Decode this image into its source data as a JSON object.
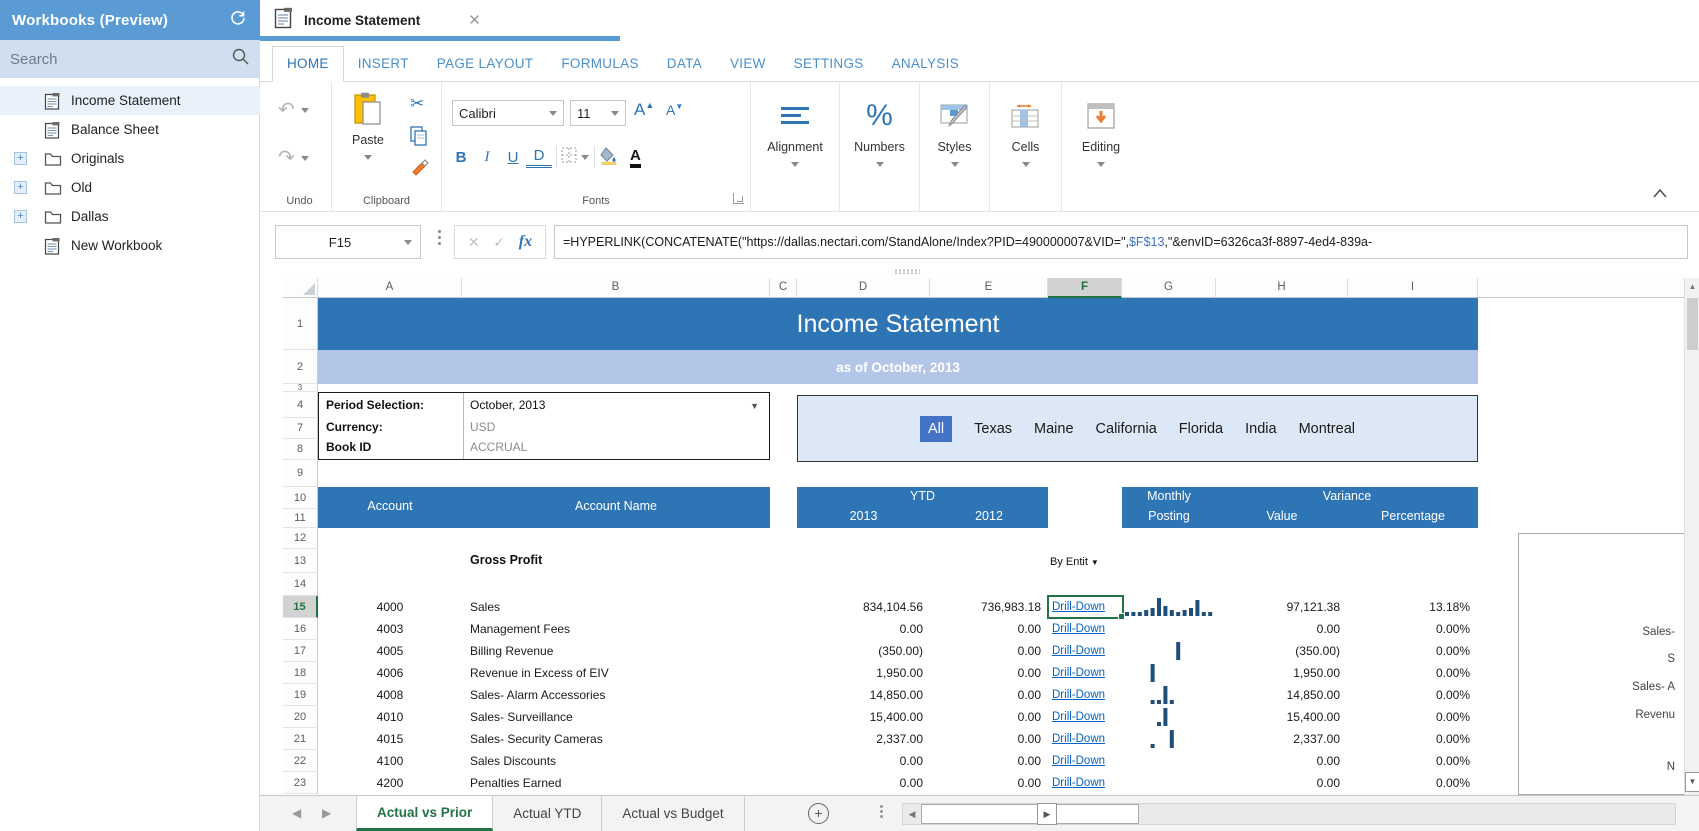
{
  "sidebar": {
    "title": "Workbooks (Preview)",
    "search_placeholder": "Search",
    "items": [
      {
        "label": "Income Statement",
        "type": "workbook",
        "expandable": false,
        "selected": true
      },
      {
        "label": "Balance Sheet",
        "type": "workbook",
        "expandable": false,
        "selected": false
      },
      {
        "label": "Originals",
        "type": "folder",
        "expandable": true,
        "selected": false
      },
      {
        "label": "Old",
        "type": "folder",
        "expandable": true,
        "selected": false
      },
      {
        "label": "Dallas",
        "type": "folder",
        "expandable": true,
        "selected": false
      },
      {
        "label": "New Workbook",
        "type": "workbook",
        "expandable": false,
        "selected": false
      }
    ]
  },
  "doc_tab": {
    "title": "Income Statement"
  },
  "ribbon": {
    "tabs": [
      "HOME",
      "INSERT",
      "PAGE LAYOUT",
      "FORMULAS",
      "DATA",
      "VIEW",
      "SETTINGS",
      "ANALYSIS"
    ],
    "active_tab": "HOME",
    "groups": {
      "undo": "Undo",
      "clipboard": "Clipboard",
      "fonts": "Fonts",
      "alignment": "Alignment",
      "numbers": "Numbers",
      "styles": "Styles",
      "cells": "Cells",
      "editing": "Editing"
    },
    "paste_label": "Paste",
    "font_name": "Calibri",
    "font_size": "11"
  },
  "formula_bar": {
    "cell_ref": "F15",
    "formula_pre": "=HYPERLINK(CONCATENATE(\"https://dallas.nectari.com/StandAlone/Index?PID=490000007&VID=\",",
    "formula_ref": "$F$13",
    "formula_post": ",\"&envID=6326ca3f-8897-4ed4-839a-"
  },
  "sheet": {
    "col_letters": [
      "A",
      "B",
      "C",
      "D",
      "E",
      "F",
      "G",
      "H",
      "I"
    ],
    "selected_col": "F",
    "static_row_numbers": [
      "1",
      "2",
      "3",
      "4",
      "7",
      "8",
      "9",
      "10",
      "11",
      "12",
      "13",
      "14"
    ],
    "title": "Income Statement",
    "subtitle": "as of October, 2013",
    "period": {
      "label": "Period Selection:",
      "value": "October, 2013"
    },
    "currency": {
      "label": "Currency:",
      "value": "USD"
    },
    "book": {
      "label": "Book ID",
      "value": "ACCRUAL"
    },
    "filters": {
      "items": [
        "All",
        "Texas",
        "Maine",
        "California",
        "Florida",
        "India",
        "Montreal"
      ],
      "active": "All"
    },
    "headers": {
      "account": "Account",
      "account_name": "Account Name",
      "ytd": "YTD",
      "y2013": "2013",
      "y2012": "2012",
      "monthly": "Monthly",
      "posting": "Posting",
      "variance": "Variance",
      "value": "Value",
      "percentage": "Percentage"
    },
    "section_label": "Gross Profit",
    "entity_dropdown": "By Entit",
    "drill_label": "Drill-Down",
    "rows": [
      {
        "num": "15",
        "account": "4000",
        "name": "Sales",
        "ytd2013": "834,104.56",
        "ytd2012": "736,983.18",
        "value": "97,121.38",
        "pct": "13.18%",
        "spark": [
          2,
          2,
          2,
          3,
          4,
          9,
          5,
          3,
          2,
          3,
          4,
          8,
          2,
          2
        ],
        "selected": true
      },
      {
        "num": "16",
        "account": "4003",
        "name": "Management Fees",
        "ytd2013": "0.00",
        "ytd2012": "0.00",
        "value": "0.00",
        "pct": "0.00%",
        "spark": [],
        "selected": false
      },
      {
        "num": "17",
        "account": "4005",
        "name": "Billing Revenue",
        "ytd2013": "(350.00)",
        "ytd2012": "0.00",
        "value": "(350.00)",
        "pct": "0.00%",
        "spark": [
          0,
          0,
          0,
          0,
          0,
          0,
          0,
          0,
          9,
          0,
          0,
          0,
          0,
          0
        ],
        "selected": false
      },
      {
        "num": "18",
        "account": "4006",
        "name": "Revenue in Excess of EIV",
        "ytd2013": "1,950.00",
        "ytd2012": "0.00",
        "value": "1,950.00",
        "pct": "0.00%",
        "spark": [
          0,
          0,
          0,
          0,
          9,
          0,
          0,
          0,
          0,
          0,
          0,
          0,
          0,
          0
        ],
        "selected": false
      },
      {
        "num": "19",
        "account": "4008",
        "name": "Sales- Alarm Accessories",
        "ytd2013": "14,850.00",
        "ytd2012": "0.00",
        "value": "14,850.00",
        "pct": "0.00%",
        "spark": [
          0,
          0,
          0,
          0,
          2,
          2,
          9,
          2,
          0,
          0,
          0,
          0,
          0,
          0
        ],
        "selected": false
      },
      {
        "num": "20",
        "account": "4010",
        "name": "Sales- Surveillance",
        "ytd2013": "15,400.00",
        "ytd2012": "0.00",
        "value": "15,400.00",
        "pct": "0.00%",
        "spark": [
          0,
          0,
          0,
          0,
          0,
          2,
          9,
          0,
          0,
          0,
          0,
          0,
          0,
          0
        ],
        "selected": false
      },
      {
        "num": "21",
        "account": "4015",
        "name": "Sales- Security Cameras",
        "ytd2013": "2,337.00",
        "ytd2012": "0.00",
        "value": "2,337.00",
        "pct": "0.00%",
        "spark": [
          0,
          0,
          0,
          0,
          2,
          0,
          0,
          9,
          0,
          0,
          0,
          0,
          0,
          0
        ],
        "selected": false
      },
      {
        "num": "22",
        "account": "4100",
        "name": "Sales Discounts",
        "ytd2013": "0.00",
        "ytd2012": "0.00",
        "value": "0.00",
        "pct": "0.00%",
        "spark": [],
        "selected": false
      },
      {
        "num": "23",
        "account": "4200",
        "name": "Penalties Earned",
        "ytd2013": "0.00",
        "ytd2012": "0.00",
        "value": "0.00",
        "pct": "0.00%",
        "spark": [],
        "selected": false
      }
    ],
    "side_panel_labels": [
      "Sales-",
      "S",
      "Sales- A",
      "Revenu",
      "N"
    ]
  },
  "bottom_bar": {
    "sheet_tabs": [
      {
        "label": "Actual vs Prior",
        "active": true
      },
      {
        "label": "Actual YTD",
        "active": false
      },
      {
        "label": "Actual vs Budget",
        "active": false
      }
    ]
  },
  "colors": {
    "sidebar_header": "#5b9bd5",
    "banner_blue": "#2e75b6",
    "banner_light": "#b3c6e7",
    "filter_active": "#4472c4",
    "link_blue": "#0563c1",
    "selection_green": "#217346",
    "sparkline": "#1f4e79"
  }
}
